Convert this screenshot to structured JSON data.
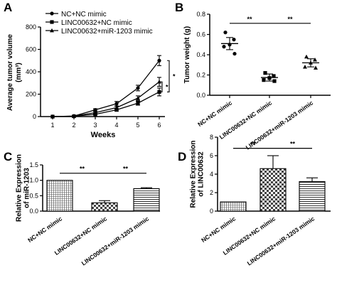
{
  "colors": {
    "ink": "#000000",
    "background": "#ffffff"
  },
  "chart_data": [
    {
      "panel": "A",
      "type": "line",
      "xlabel": "Weeks",
      "ylabel": "Average tumor volume",
      "ylabel_unit": "(mm³)",
      "x": [
        1,
        2,
        3,
        4,
        5,
        6
      ],
      "ylim": [
        0,
        800
      ],
      "yticks": [
        0,
        200,
        400,
        600,
        800
      ],
      "legend_position": "top-left",
      "series": [
        {
          "name": "NC+NC mimic",
          "marker": "circle",
          "values": [
            0,
            5,
            60,
            115,
            255,
            500
          ],
          "errors": [
            0,
            3,
            10,
            20,
            25,
            45
          ]
        },
        {
          "name": "LINC00632+NC mimic",
          "marker": "square",
          "values": [
            0,
            3,
            20,
            60,
            120,
            220
          ],
          "errors": [
            0,
            2,
            6,
            10,
            18,
            35
          ]
        },
        {
          "name": "LINC00632+miR-1203 mimic",
          "marker": "triangle",
          "values": [
            0,
            4,
            35,
            80,
            165,
            310
          ],
          "errors": [
            0,
            2,
            8,
            12,
            20,
            40
          ]
        }
      ],
      "significance": [
        "*",
        "*"
      ]
    },
    {
      "panel": "B",
      "type": "scatter",
      "ylabel": "Tumor weight (g)",
      "categories": [
        "NC+NC mimic",
        "LINC00632+NC mimic",
        "LINC00632+miR-1203 mimic"
      ],
      "ylim": [
        0,
        0.8
      ],
      "yticks": [
        0.0,
        0.2,
        0.4,
        0.6,
        0.8
      ],
      "groups": [
        {
          "marker": "circle",
          "points": [
            0.62,
            0.55,
            0.5,
            0.48,
            0.41
          ],
          "mean": 0.51,
          "sd": 0.06
        },
        {
          "marker": "square",
          "points": [
            0.22,
            0.19,
            0.17,
            0.15,
            0.14
          ],
          "mean": 0.175,
          "sd": 0.035
        },
        {
          "marker": "triangle",
          "points": [
            0.38,
            0.35,
            0.32,
            0.28,
            0.27
          ],
          "mean": 0.32,
          "sd": 0.04
        }
      ],
      "significance": [
        "**",
        "**"
      ]
    },
    {
      "panel": "C",
      "type": "bar",
      "ylabel": "Relative Expression",
      "ylabel_line2": "of miR-1203",
      "categories": [
        "NC+NC mimic",
        "LINC00632+NC mimic",
        "LINC00632+miR-1203 mimic"
      ],
      "values": [
        1.0,
        0.27,
        0.73
      ],
      "errors": [
        0,
        0.07,
        0.03
      ],
      "ylim": [
        0,
        1.5
      ],
      "yticks": [
        0.0,
        0.5,
        1.0,
        1.5
      ],
      "significance": [
        "**",
        "**"
      ]
    },
    {
      "panel": "D",
      "type": "bar",
      "ylabel": "Relative Expression",
      "ylabel_line2": "of LINC00632",
      "categories": [
        "NC+NC mimic",
        "LINC00632+NC mimic",
        "LINC00632+miR-1203 mimic"
      ],
      "values": [
        1.0,
        4.6,
        3.2
      ],
      "errors": [
        0,
        1.4,
        0.4
      ],
      "ylim": [
        0,
        8
      ],
      "yticks": [
        0,
        2,
        4,
        6,
        8
      ],
      "significance": [
        "**",
        "**"
      ]
    }
  ]
}
